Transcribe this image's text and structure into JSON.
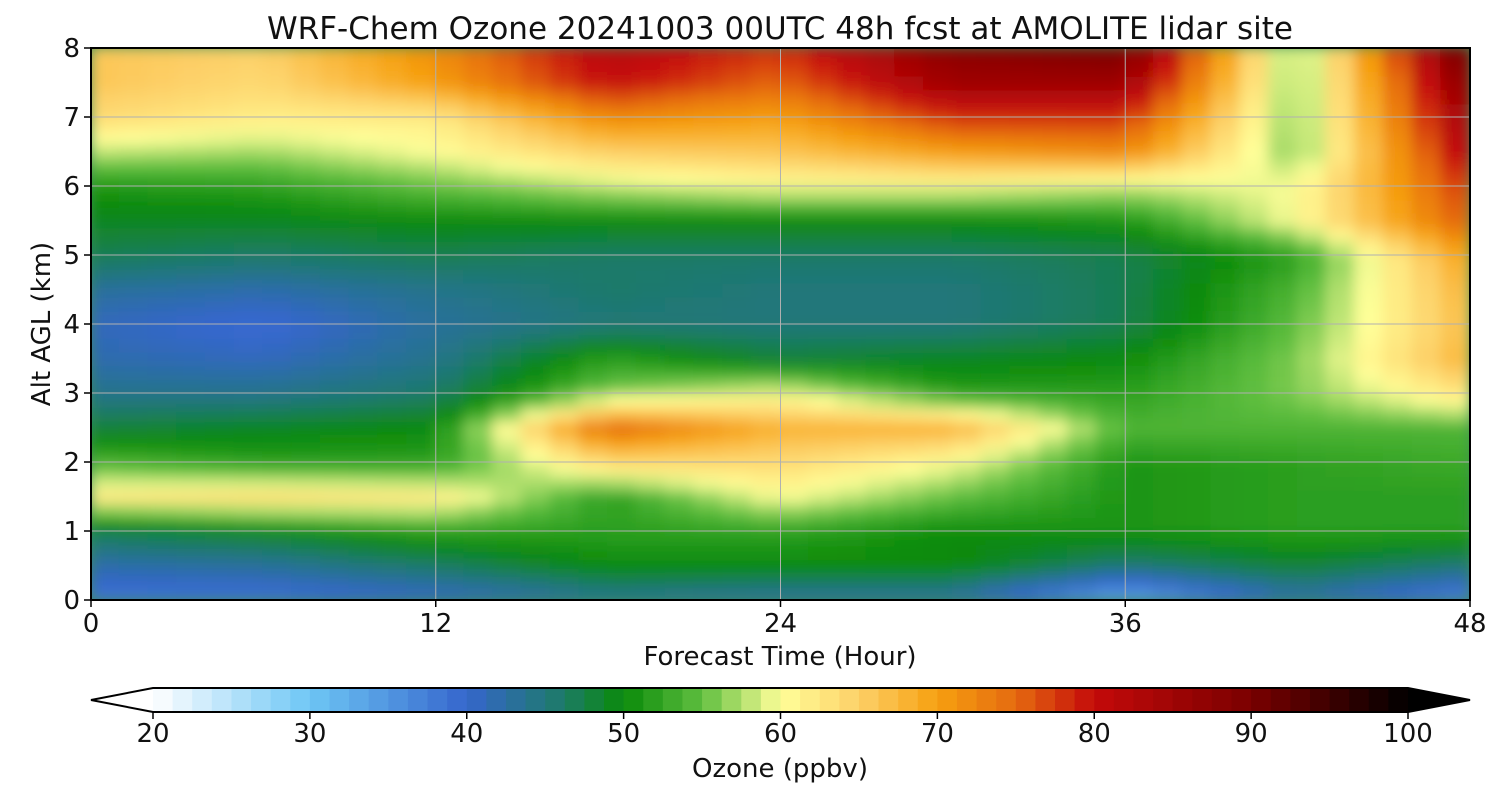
{
  "chart_data": {
    "type": "heatmap",
    "title": "WRF-Chem Ozone  20241003 00UTC 48h fcst at AMOLITE lidar site",
    "xlabel": "Forecast Time (Hour)",
    "ylabel": "Alt AGL (km)",
    "xlim": [
      0,
      48
    ],
    "ylim": [
      0,
      8
    ],
    "x_ticks": [
      "0",
      "12",
      "24",
      "36",
      "48"
    ],
    "y_ticks": [
      "0",
      "1",
      "2",
      "3",
      "4",
      "5",
      "6",
      "7",
      "8"
    ],
    "grid": true,
    "x": [
      0,
      6,
      12,
      18,
      24,
      30,
      36,
      42,
      48
    ],
    "y": [
      0,
      0.5,
      1,
      1.5,
      2,
      2.5,
      3,
      3.5,
      4,
      4.5,
      5,
      5.5,
      6,
      6.5,
      7,
      7.5,
      8
    ],
    "z": [
      [
        38,
        38,
        40,
        43,
        42,
        42,
        32,
        42,
        36
      ],
      [
        42,
        43,
        46,
        50,
        50,
        50,
        45,
        48,
        45
      ],
      [
        47,
        49,
        52,
        52,
        52,
        50,
        51,
        52,
        52
      ],
      [
        62,
        63,
        62,
        52,
        60,
        55,
        51,
        52,
        52
      ],
      [
        54,
        52,
        52,
        64,
        64,
        60,
        51,
        52,
        53
      ],
      [
        48,
        49,
        50,
        75,
        68,
        68,
        54,
        54,
        54
      ],
      [
        44,
        44,
        46,
        56,
        60,
        52,
        52,
        56,
        63
      ],
      [
        42,
        41,
        44,
        52,
        48,
        49,
        50,
        56,
        68
      ],
      [
        41,
        39,
        43,
        45,
        45,
        45,
        47,
        55,
        67
      ],
      [
        43,
        42,
        44,
        46,
        45,
        45,
        47,
        54,
        68
      ],
      [
        47,
        46,
        47,
        46,
        46,
        46,
        47,
        52,
        70
      ],
      [
        49,
        49,
        50,
        50,
        50,
        50,
        51,
        60,
        76
      ],
      [
        51,
        52,
        55,
        58,
        60,
        60,
        58,
        60,
        78
      ],
      [
        58,
        57,
        60,
        65,
        66,
        70,
        72,
        56,
        82
      ],
      [
        64,
        62,
        62,
        72,
        70,
        78,
        78,
        56,
        85
      ],
      [
        66,
        64,
        70,
        80,
        75,
        85,
        85,
        56,
        88
      ],
      [
        66,
        65,
        72,
        82,
        78,
        88,
        90,
        56,
        92
      ]
    ],
    "colorbar": {
      "label": "Ozone  (ppbv)",
      "min": 20,
      "max": 100,
      "ticks": [
        "20",
        "30",
        "40",
        "50",
        "60",
        "70",
        "80",
        "90",
        "100"
      ],
      "extend": "both",
      "stops": [
        {
          "v": 20,
          "c": "#ffffff"
        },
        {
          "v": 30,
          "c": "#6ec6f5"
        },
        {
          "v": 40,
          "c": "#3566cc"
        },
        {
          "v": 46,
          "c": "#1d7a6a"
        },
        {
          "v": 50,
          "c": "#0a8a0a"
        },
        {
          "v": 55,
          "c": "#60bf40"
        },
        {
          "v": 60,
          "c": "#ffff99"
        },
        {
          "v": 65,
          "c": "#fdd068"
        },
        {
          "v": 70,
          "c": "#f6a010"
        },
        {
          "v": 75,
          "c": "#e56a10"
        },
        {
          "v": 80,
          "c": "#c40a0a"
        },
        {
          "v": 90,
          "c": "#7a0000"
        },
        {
          "v": 100,
          "c": "#000000"
        }
      ]
    }
  }
}
